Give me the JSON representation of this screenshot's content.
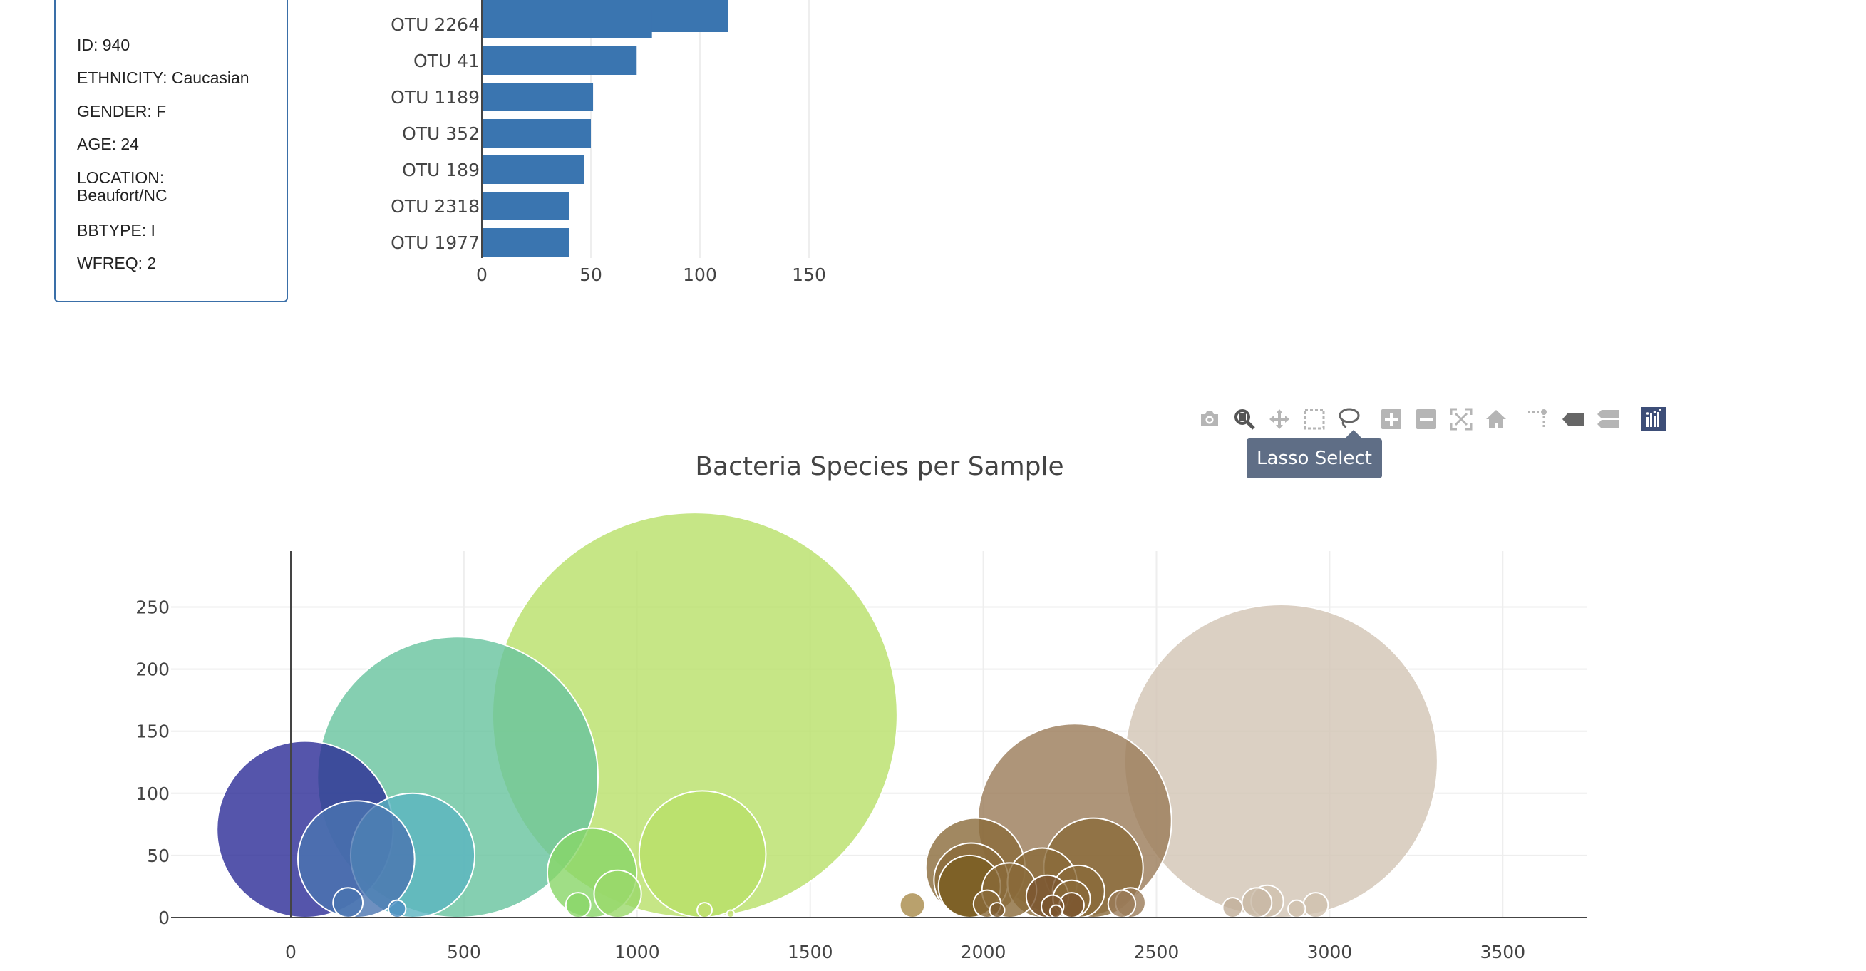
{
  "metadata": {
    "items": [
      {
        "text": "ID: 940"
      },
      {
        "text": "ETHNICITY: Caucasian"
      },
      {
        "text": "GENDER: F"
      },
      {
        "text": "AGE: 24"
      },
      {
        "text": "LOCATION: Beaufort/NC"
      },
      {
        "text": "BBTYPE: I"
      },
      {
        "text": "WFREQ: 2"
      }
    ]
  },
  "modebar": {
    "buttons": [
      "camera-icon",
      "zoom-icon",
      "pan-icon",
      "box-select-icon",
      "lasso-icon",
      "zoom-in-icon",
      "zoom-out-icon",
      "autoscale-icon",
      "reset-axes-icon",
      "spike-lines-icon",
      "hover-closest-icon",
      "hover-compare-icon",
      "plotly-logo-icon"
    ],
    "tooltip": "Lasso Select",
    "tooltip_color": "#5f6e86"
  },
  "chart_data": [
    {
      "type": "bar",
      "orientation": "h",
      "categories": [
        "OTU 2264",
        "OTU 41",
        "OTU 1189",
        "OTU 352",
        "OTU 189",
        "OTU 2318",
        "OTU 1977"
      ],
      "values": [
        78,
        71,
        51,
        50,
        47,
        40,
        40
      ],
      "partial_top_bar_value": 113,
      "xticks": [
        0,
        50,
        100,
        150
      ],
      "xlim": [
        0,
        160
      ],
      "color": "#3a75b0"
    },
    {
      "type": "scatter",
      "title": "Bacteria Species per Sample",
      "xlim": [
        -340,
        3750
      ],
      "ylim": [
        0,
        295
      ],
      "xticks": [
        0,
        500,
        1000,
        1500,
        2000,
        2500,
        3000,
        3500
      ],
      "yticks": [
        0,
        50,
        100,
        150,
        200,
        250
      ],
      "grid": true,
      "points": [
        {
          "x": 41,
          "y": 71,
          "size": 71,
          "color": "#2a2a96"
        },
        {
          "x": 189,
          "y": 47,
          "size": 47,
          "color": "#4a74b0"
        },
        {
          "x": 165,
          "y": 12,
          "size": 12,
          "color": "#4a74b0"
        },
        {
          "x": 307,
          "y": 7,
          "size": 7,
          "color": "#4a8cc0"
        },
        {
          "x": 352,
          "y": 50,
          "size": 50,
          "color": "#5ab4c0"
        },
        {
          "x": 482,
          "y": 113,
          "size": 113,
          "color": "#66c39e"
        },
        {
          "x": 870,
          "y": 36,
          "size": 36,
          "color": "#88d668"
        },
        {
          "x": 830,
          "y": 10,
          "size": 10,
          "color": "#8ad668"
        },
        {
          "x": 944,
          "y": 19,
          "size": 19,
          "color": "#9ad86a"
        },
        {
          "x": 1167,
          "y": 163,
          "size": 163,
          "color": "#b8e068"
        },
        {
          "x": 1189,
          "y": 51,
          "size": 51,
          "color": "#b8e068"
        },
        {
          "x": 1195,
          "y": 6,
          "size": 6,
          "color": "#c0e070"
        },
        {
          "x": 1270,
          "y": 3,
          "size": 3,
          "color": "#c0e070"
        },
        {
          "x": 1795,
          "y": 10,
          "size": 10,
          "color": "#a88a48"
        },
        {
          "x": 1977,
          "y": 40,
          "size": 40,
          "color": "#8a6a3a"
        },
        {
          "x": 1965,
          "y": 30,
          "size": 30,
          "color": "#8a6a3a"
        },
        {
          "x": 1960,
          "y": 25,
          "size": 25,
          "color": "#7a5e20"
        },
        {
          "x": 2011,
          "y": 11,
          "size": 11,
          "color": "#8a6a3a"
        },
        {
          "x": 2040,
          "y": 6,
          "size": 6,
          "color": "#7a5a30"
        },
        {
          "x": 2075,
          "y": 22,
          "size": 22,
          "color": "#8a6a3a"
        },
        {
          "x": 2170,
          "y": 28,
          "size": 28,
          "color": "#8a6a3a"
        },
        {
          "x": 2185,
          "y": 17,
          "size": 17,
          "color": "#7a5530"
        },
        {
          "x": 2210,
          "y": 5,
          "size": 5,
          "color": "#7a5530"
        },
        {
          "x": 2200,
          "y": 9,
          "size": 9,
          "color": "#7a5530"
        },
        {
          "x": 2264,
          "y": 78,
          "size": 78,
          "color": "#9a7a58"
        },
        {
          "x": 2255,
          "y": 15,
          "size": 15,
          "color": "#8a6a3a"
        },
        {
          "x": 2255,
          "y": 10,
          "size": 10,
          "color": "#7a5530"
        },
        {
          "x": 2275,
          "y": 21,
          "size": 21,
          "color": "#8a6a3a"
        },
        {
          "x": 2318,
          "y": 40,
          "size": 40,
          "color": "#8a6a3a"
        },
        {
          "x": 2400,
          "y": 11,
          "size": 11,
          "color": "#9a7a58"
        },
        {
          "x": 2425,
          "y": 12,
          "size": 12,
          "color": "#9a7a58"
        },
        {
          "x": 2720,
          "y": 8,
          "size": 8,
          "color": "#c0ae98"
        },
        {
          "x": 2790,
          "y": 12,
          "size": 12,
          "color": "#c8b8a4"
        },
        {
          "x": 2820,
          "y": 13,
          "size": 13,
          "color": "#d0c0ae"
        },
        {
          "x": 2860,
          "y": 126,
          "size": 126,
          "color": "#d2c4b4"
        },
        {
          "x": 2905,
          "y": 7,
          "size": 7,
          "color": "#d0c0ae"
        },
        {
          "x": 2960,
          "y": 10,
          "size": 10,
          "color": "#d0c0ae"
        }
      ]
    }
  ]
}
